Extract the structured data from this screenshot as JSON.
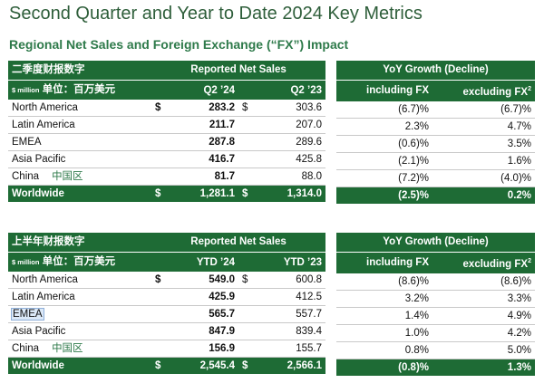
{
  "page": {
    "title": "Second Quarter and Year to Date 2024 Key Metrics",
    "subtitle": "Regional Net Sales and Foreign Exchange (“FX”) Impact"
  },
  "q2": {
    "cn_header": "二季度财报数字",
    "unit_prefix": "$ million",
    "unit_cn": "单位：百万美元",
    "reported_header": "Reported Net Sales",
    "col_a": "Q2 ’24",
    "col_b": "Q2 ’23",
    "growth_header": "YoY Growth (Decline)",
    "incl_fx": "including FX",
    "excl_fx": "excluding FX",
    "excl_sup": "2",
    "rows": [
      {
        "region": "North America",
        "cn": "",
        "dollar_a": "$",
        "a": "283.2",
        "dollar_b": "$",
        "b": "303.6",
        "incl": "(6.7)%",
        "excl": "(6.7)%"
      },
      {
        "region": "Latin America",
        "cn": "",
        "dollar_a": "",
        "a": "211.7",
        "dollar_b": "",
        "b": "207.0",
        "incl": "2.3%",
        "excl": "4.7%"
      },
      {
        "region": "EMEA",
        "cn": "",
        "dollar_a": "",
        "a": "287.8",
        "dollar_b": "",
        "b": "289.6",
        "incl": "(0.6)%",
        "excl": "3.5%"
      },
      {
        "region": "Asia Pacific",
        "cn": "",
        "dollar_a": "",
        "a": "416.7",
        "dollar_b": "",
        "b": "425.8",
        "incl": "(2.1)%",
        "excl": "1.6%"
      },
      {
        "region": "China",
        "cn": "中国区",
        "dollar_a": "",
        "a": "81.7",
        "dollar_b": "",
        "b": "88.0",
        "incl": "(7.2)%",
        "excl": "(4.0)%"
      }
    ],
    "total": {
      "region": "Worldwide",
      "dollar_a": "$",
      "a": "1,281.1",
      "dollar_b": "$",
      "b": "1,314.0",
      "incl": "(2.5)%",
      "excl": "0.2%"
    }
  },
  "ytd": {
    "cn_header": "上半年财报数字",
    "unit_prefix": "$ million",
    "unit_cn": "单位：百万美元",
    "reported_header": "Reported Net Sales",
    "col_a": "YTD ’24",
    "col_b": "YTD ’23",
    "growth_header": "YoY Growth (Decline)",
    "incl_fx": "including FX",
    "excl_fx": "excluding FX",
    "excl_sup": "2",
    "rows": [
      {
        "region": "North America",
        "cn": "",
        "dollar_a": "$",
        "a": "549.0",
        "dollar_b": "$",
        "b": "600.8",
        "incl": "(8.6)%",
        "excl": "(8.6)%"
      },
      {
        "region": "Latin America",
        "cn": "",
        "dollar_a": "",
        "a": "425.9",
        "dollar_b": "",
        "b": "412.5",
        "incl": "3.2%",
        "excl": "3.3%"
      },
      {
        "region": "EMEA",
        "cn": "",
        "dollar_a": "",
        "a": "565.7",
        "dollar_b": "",
        "b": "557.7",
        "incl": "1.4%",
        "excl": "4.9%"
      },
      {
        "region": "Asia Pacific",
        "cn": "",
        "dollar_a": "",
        "a": "847.9",
        "dollar_b": "",
        "b": "839.4",
        "incl": "1.0%",
        "excl": "4.2%"
      },
      {
        "region": "China",
        "cn": "中国区",
        "dollar_a": "",
        "a": "156.9",
        "dollar_b": "",
        "b": "155.7",
        "incl": "0.8%",
        "excl": "5.0%"
      }
    ],
    "total": {
      "region": "Worldwide",
      "dollar_a": "$",
      "a": "2,545.4",
      "dollar_b": "$",
      "b": "2,566.1",
      "incl": "(0.8)%",
      "excl": "1.3%"
    }
  }
}
